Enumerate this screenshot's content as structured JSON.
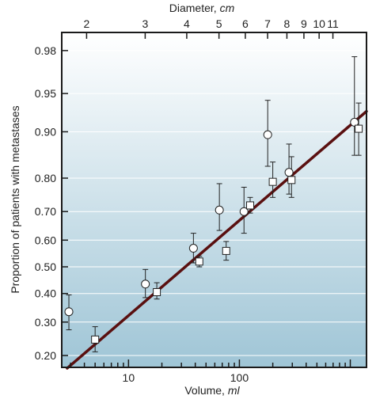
{
  "colors": {
    "frame": "#1a1a1a",
    "bg_top": "#ffffff",
    "bg_bottom": "#9fc5d6",
    "grid": "#ffffff",
    "fit_line": "#5a1010",
    "marker_edge": "#222222",
    "marker_fill": "#ffffff"
  },
  "chart_data": {
    "type": "scatter",
    "title": "",
    "xlabel_prefix": "Volume,",
    "xlabel_unit": "ml",
    "top_label_prefix": "Diameter,",
    "top_label_unit": "cm",
    "ylabel": "Proportion of patients with metastases",
    "x_scale": "log",
    "y_scale": "probit",
    "xlim": [
      2.5,
      1400
    ],
    "ylim": [
      0.17,
      0.987
    ],
    "grid": "horizontal",
    "x_ticks": [
      {
        "value": 10,
        "label": "10"
      },
      {
        "value": 100,
        "label": "100"
      }
    ],
    "top_ticks": [
      {
        "value": 2,
        "label": "2"
      },
      {
        "value": 3,
        "label": "3"
      },
      {
        "value": 4,
        "label": "4"
      },
      {
        "value": 5,
        "label": "5"
      },
      {
        "value": 6,
        "label": "6"
      },
      {
        "value": 7,
        "label": "7"
      },
      {
        "value": 8,
        "label": "8"
      },
      {
        "value": 9,
        "label": "9"
      },
      {
        "value": 10,
        "label": "10"
      },
      {
        "value": 11,
        "label": "11"
      }
    ],
    "y_ticks": [
      {
        "value": 0.2,
        "label": "0.20"
      },
      {
        "value": 0.3,
        "label": "0.30"
      },
      {
        "value": 0.4,
        "label": "0.40"
      },
      {
        "value": 0.5,
        "label": "0.50"
      },
      {
        "value": 0.6,
        "label": "0.60"
      },
      {
        "value": 0.7,
        "label": "0.70"
      },
      {
        "value": 0.8,
        "label": "0.80"
      },
      {
        "value": 0.9,
        "label": "0.90"
      },
      {
        "value": 0.95,
        "label": "0.95"
      },
      {
        "value": 0.98,
        "label": "0.98"
      }
    ],
    "series": [
      {
        "marker": "circle",
        "points": [
          {
            "x": 2.9,
            "y": 0.335,
            "lo": 0.275,
            "hi": 0.395
          },
          {
            "x": 14.2,
            "y": 0.435,
            "lo": 0.385,
            "hi": 0.49
          },
          {
            "x": 38.5,
            "y": 0.57,
            "lo": 0.515,
            "hi": 0.625
          },
          {
            "x": 66,
            "y": 0.705,
            "lo": 0.635,
            "hi": 0.785
          },
          {
            "x": 110,
            "y": 0.7,
            "lo": 0.625,
            "hi": 0.775
          },
          {
            "x": 180,
            "y": 0.895,
            "lo": 0.83,
            "hi": 0.943
          },
          {
            "x": 280,
            "y": 0.815,
            "lo": 0.755,
            "hi": 0.878
          },
          {
            "x": 1090,
            "y": 0.915,
            "lo": 0.855,
            "hi": 0.977
          }
        ]
      },
      {
        "marker": "square",
        "points": [
          {
            "x": 5.0,
            "y": 0.245,
            "lo": 0.21,
            "hi": 0.285
          },
          {
            "x": 18.0,
            "y": 0.405,
            "lo": 0.38,
            "hi": 0.44
          },
          {
            "x": 43.5,
            "y": 0.52,
            "lo": 0.5,
            "hi": 0.54
          },
          {
            "x": 76,
            "y": 0.56,
            "lo": 0.525,
            "hi": 0.595
          },
          {
            "x": 125,
            "y": 0.72,
            "lo": 0.695,
            "hi": 0.745
          },
          {
            "x": 200,
            "y": 0.79,
            "lo": 0.745,
            "hi": 0.84
          },
          {
            "x": 295,
            "y": 0.795,
            "lo": 0.745,
            "hi": 0.852
          },
          {
            "x": 1190,
            "y": 0.905,
            "lo": 0.855,
            "hi": 0.94
          }
        ]
      }
    ],
    "fit_line": [
      {
        "x": 2.8,
        "y": 0.168
      },
      {
        "x": 1400,
        "y": 0.93
      }
    ]
  }
}
